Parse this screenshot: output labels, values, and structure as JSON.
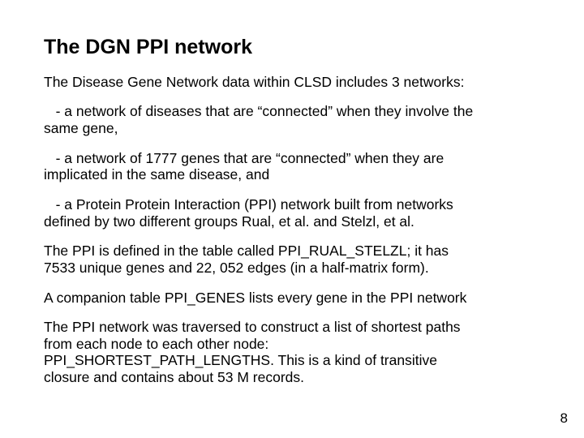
{
  "title": "The DGN PPI network",
  "p1": "The Disease Gene Network data within CLSD includes 3 networks:",
  "p2a": "   - a network of diseases that are “connected” when they involve the",
  "p2b": "same gene,",
  "p3a": "   - a network of 1777 genes that are “connected” when they are",
  "p3b": "implicated in the same disease, and",
  "p4a": "   - a Protein Protein Interaction (PPI) network built from networks",
  "p4b": "defined by two different groups Rual, et al. and Stelzl, et al.",
  "p5a": "The PPI is defined in the table called PPI_RUAL_STELZL; it has",
  "p5b": "7533 unique genes and 22, 052 edges  (in a half-matrix form).",
  "p6": "A companion table PPI_GENES lists every gene in the PPI network",
  "p7a": "The PPI network was traversed to construct a list of shortest paths",
  "p7b": "from each node to each other node:",
  "p7c": "PPI_SHORTEST_PATH_LENGTHS. This is a kind of transitive",
  "p7d": "closure and contains about 53 M records.",
  "page_number": "8"
}
